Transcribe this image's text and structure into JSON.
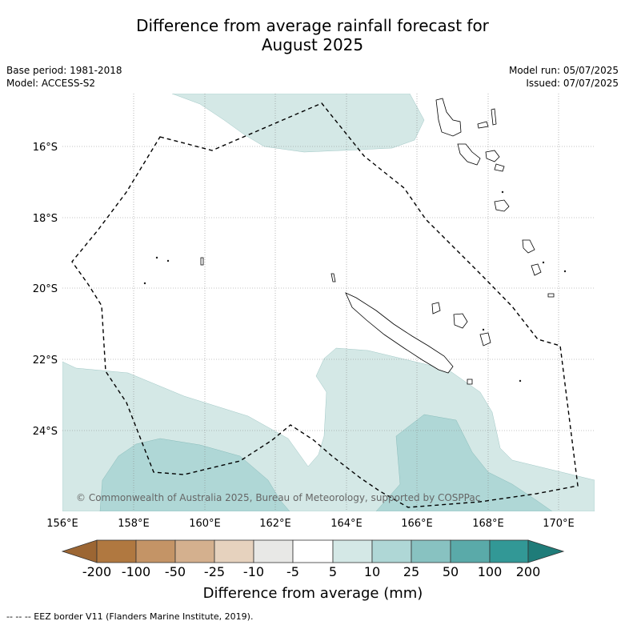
{
  "title_line1": "Difference from average rainfall forecast for",
  "title_line2": "August 2025",
  "base_period": "Base period: 1981-2018",
  "model": "Model: ACCESS-S2",
  "model_run": "Model run: 05/07/2025",
  "issued": "Issued: 07/07/2025",
  "copyright": "© Commonwealth of Australia 2025, Bureau of Meteorology, supported by COSPPac",
  "colorbar_label": "Difference from average (mm)",
  "footer_note": "--  --  -- EEZ border V11 (Flanders Marine Institute, 2019).",
  "lat_labels": [
    "16°S",
    "18°S",
    "20°S",
    "22°S",
    "24°S"
  ],
  "lon_labels": [
    "156°E",
    "158°E",
    "160°E",
    "162°E",
    "164°E",
    "166°E",
    "168°E",
    "170°E"
  ],
  "colorbar": {
    "ticks": [
      "-200",
      "-100",
      "-50",
      "-25",
      "-10",
      "-5",
      "5",
      "10",
      "25",
      "50",
      "100",
      "200"
    ],
    "colors": {
      "below_min": "#9c6633",
      "c1": "#b07840",
      "c2": "#c49466",
      "c3": "#d4b08e",
      "c4": "#e6d2be",
      "c5": "#e8e8e6",
      "c6": "#ffffff",
      "c7": "#d4e8e6",
      "c8": "#afd7d6",
      "c9": "#88c2c1",
      "c10": "#5aaaa9",
      "c11": "#329896",
      "above_max": "#1f7c79"
    }
  },
  "map": {
    "extent": {
      "lon_min": 156,
      "lon_max": 171,
      "lat_min": -26.5,
      "lat_max": -14.5
    },
    "fill_colors": {
      "band_5_10": "#d4e8e6",
      "band_10_25": "#afd7d6"
    },
    "border_style": "dashed",
    "grid": "dotted"
  }
}
